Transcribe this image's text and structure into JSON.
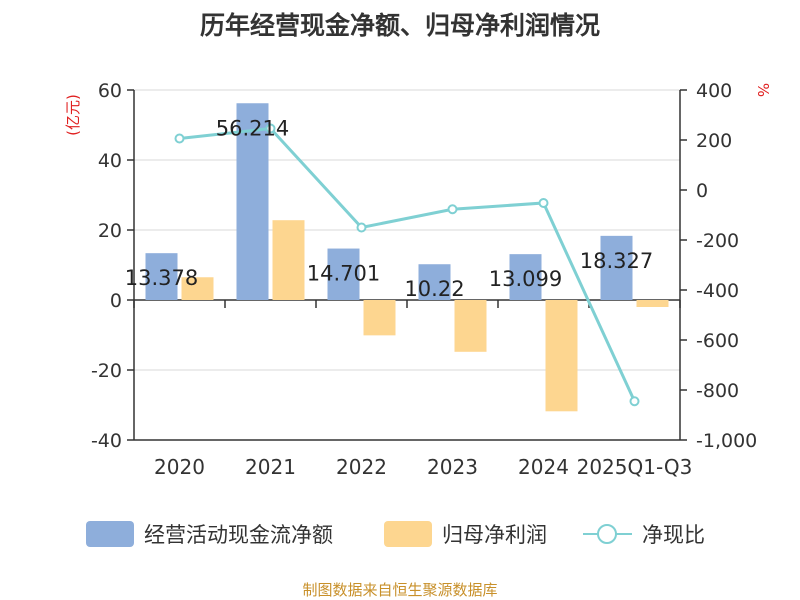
{
  "title": "历年经营现金净额、归母净利润情况",
  "source_note": "制图数据来自恒生聚源数据库",
  "colors": {
    "operating_cash": "#8eaedb",
    "net_profit": "#fdd690",
    "ratio": "#7fd0d3",
    "axis": "#333333",
    "grid": "#d8d8d8",
    "unit": "#e02020",
    "source": "#c8902a"
  },
  "chart_data": {
    "type": "bar",
    "title": "历年经营现金净额、归母净利润情况",
    "categories": [
      "2020",
      "2021",
      "2022",
      "2023",
      "2024",
      "2025Q1-Q3"
    ],
    "left_axis": {
      "unit_label": "(亿元)",
      "range": [
        -40,
        60
      ],
      "ticks": [
        60,
        40,
        20,
        0,
        -20,
        -40
      ],
      "tick_labels": [
        "60",
        "40",
        "20",
        "0",
        "-20",
        "-40"
      ]
    },
    "right_axis": {
      "unit_label": "%",
      "range": [
        -1000,
        400
      ],
      "ticks": [
        400,
        200,
        0,
        -200,
        -400,
        -600,
        -800,
        -1000
      ],
      "tick_labels": [
        "400",
        "200",
        "0",
        "-200",
        "-400",
        "-600",
        "-800",
        "-1,000"
      ]
    },
    "series": [
      {
        "name": "经营活动现金流净额",
        "type": "bar",
        "axis": "left",
        "values": [
          13.378,
          56.214,
          14.701,
          10.22,
          13.099,
          18.327
        ],
        "data_labels": [
          "13.378",
          "56.214",
          "14.701",
          "10.22",
          "13.099",
          "18.327"
        ]
      },
      {
        "name": "归母净利润",
        "type": "bar",
        "axis": "left",
        "values": [
          6.5,
          22.8,
          -10.1,
          -14.8,
          -31.8,
          -2.0
        ]
      },
      {
        "name": "净现比",
        "type": "line",
        "axis": "right",
        "values": [
          206,
          246,
          -150,
          -77,
          -52,
          -845
        ]
      }
    ],
    "legend": {
      "position": "bottom"
    }
  }
}
